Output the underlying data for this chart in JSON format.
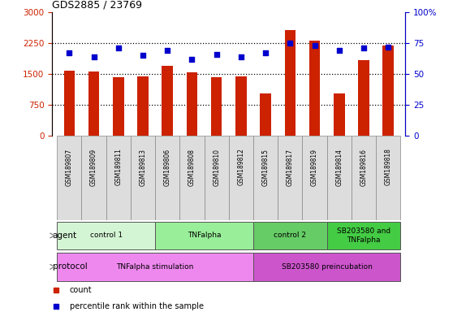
{
  "title": "GDS2885 / 23769",
  "samples": [
    "GSM189807",
    "GSM189809",
    "GSM189811",
    "GSM189813",
    "GSM189806",
    "GSM189808",
    "GSM189810",
    "GSM189812",
    "GSM189815",
    "GSM189817",
    "GSM189819",
    "GSM189814",
    "GSM189816",
    "GSM189818"
  ],
  "counts": [
    1580,
    1560,
    1420,
    1445,
    1700,
    1550,
    1420,
    1445,
    1020,
    2580,
    2320,
    1020,
    1840,
    2200
  ],
  "percentiles": [
    67,
    64,
    71,
    65,
    69,
    62,
    66,
    64,
    67,
    75,
    73,
    69,
    71,
    72
  ],
  "bar_color": "#cc2200",
  "dot_color": "#0000cc",
  "ylim_left": [
    0,
    3000
  ],
  "ylim_right": [
    0,
    100
  ],
  "yticks_left": [
    0,
    750,
    1500,
    2250,
    3000
  ],
  "yticks_right": [
    0,
    25,
    50,
    75,
    100
  ],
  "ytick_labels_left": [
    "0",
    "750",
    "1500",
    "2250",
    "3000"
  ],
  "ytick_labels_right": [
    "0",
    "25",
    "50",
    "75",
    "100%"
  ],
  "agent_groups": [
    {
      "label": "control 1",
      "start": 0,
      "end": 4,
      "color": "#d4f5d4"
    },
    {
      "label": "TNFalpha",
      "start": 4,
      "end": 8,
      "color": "#99ee99"
    },
    {
      "label": "control 2",
      "start": 8,
      "end": 11,
      "color": "#66cc66"
    },
    {
      "label": "SB203580 and\nTNFalpha",
      "start": 11,
      "end": 14,
      "color": "#44cc44"
    }
  ],
  "protocol_groups": [
    {
      "label": "TNFalpha stimulation",
      "start": 0,
      "end": 8,
      "color": "#ee88ee"
    },
    {
      "label": "SB203580 preincubation",
      "start": 8,
      "end": 14,
      "color": "#cc55cc"
    }
  ],
  "agent_label": "agent",
  "protocol_label": "protocol",
  "legend_count_color": "#cc2200",
  "legend_dot_color": "#0000cc",
  "background_color": "#ffffff",
  "sample_box_color": "#dddddd",
  "bar_width": 0.45
}
